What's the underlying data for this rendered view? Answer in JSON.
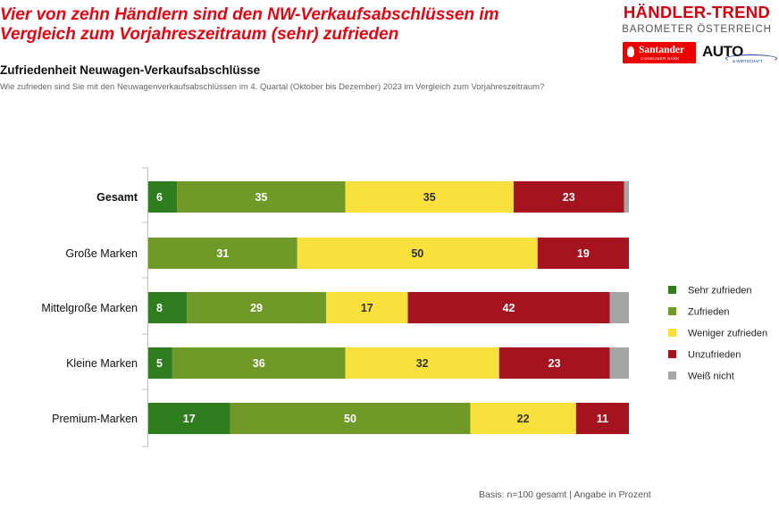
{
  "headline": {
    "line1": "Vier von zehn Händlern sind den NW-Verkaufsabschlüssen im",
    "line2": "Vergleich zum Vorjahreszeitraum (sehr) zufrieden"
  },
  "subtitle": "Zufriedenheit Neuwagen-Verkaufsabschlüsse",
  "question": "Wie zufrieden sind Sie mit den Neuwagenverkaufsabschlüssen im 4. Quartal (Oktober bis Dezember) 2023 im Vergleich zum Vorjahreszeitraum?",
  "logo": {
    "title": "HÄNDLER-TREND",
    "subtitle": "BAROMETER ÖSTERREICH",
    "sponsor1": "Santander",
    "sponsor1_sub": "CONSUMER BANK",
    "sponsor2": "AUTO",
    "sponsor2_sub": "& WIRTSCHAFT"
  },
  "footnote": "Basis: n=100 gesamt | Angabe in Prozent",
  "chart_data": {
    "type": "bar",
    "orientation": "horizontal",
    "stacked": true,
    "categories": [
      "Gesamt",
      "Große Marken",
      "Mittelgroße Marken",
      "Kleine Marken",
      "Premium-Marken"
    ],
    "bold_categories": [
      "Gesamt"
    ],
    "xlim": [
      0,
      100
    ],
    "grid": false,
    "legend_position": "right",
    "series": [
      {
        "name": "Sehr zufrieden",
        "color": "#2e7d1e",
        "values": [
          6,
          0,
          8,
          5,
          17
        ]
      },
      {
        "name": "Zufrieden",
        "color": "#6f9a28",
        "values": [
          35,
          31,
          29,
          36,
          50
        ]
      },
      {
        "name": "Weniger zufrieden",
        "color": "#f8e13c",
        "values": [
          35,
          50,
          17,
          32,
          22
        ]
      },
      {
        "name": "Unzufrieden",
        "color": "#a5131e",
        "values": [
          23,
          19,
          42,
          23,
          11
        ]
      },
      {
        "name": "Weiß nicht",
        "color": "#a6a6a6",
        "values": [
          1,
          0,
          4,
          4,
          0
        ]
      }
    ],
    "label_colors": [
      "#ffffff",
      "#ffffff",
      "#333333",
      "#ffffff",
      "#ffffff"
    ],
    "hidden_labels": [
      "Weiß nicht"
    ]
  }
}
